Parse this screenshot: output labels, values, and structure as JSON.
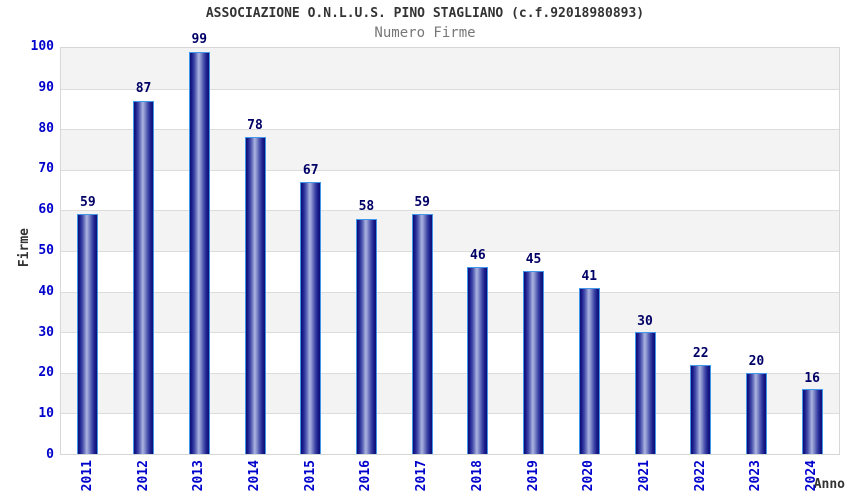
{
  "chart_data": {
    "type": "bar",
    "title": "ASSOCIAZIONE O.N.L.U.S. PINO STAGLIANO (c.f.92018980893)",
    "subtitle": "Numero Firme",
    "categories": [
      "2011",
      "2012",
      "2013",
      "2014",
      "2015",
      "2016",
      "2017",
      "2018",
      "2019",
      "2020",
      "2021",
      "2022",
      "2023",
      "2024"
    ],
    "values": [
      59,
      87,
      99,
      78,
      67,
      58,
      59,
      46,
      45,
      41,
      30,
      22,
      20,
      16
    ],
    "xlabel": "Anno",
    "ylabel": "Firme",
    "ylim": [
      0,
      100
    ],
    "ytick_step": 10,
    "grid": true,
    "legend": "none",
    "colors": {
      "bar_dark": "#0d0d73",
      "bar_highlight": "#aab3e0",
      "bar_border": "#4297e8",
      "tick_label": "#0000cc",
      "value_label": "#000066",
      "title": "#333333",
      "subtitle": "#777777",
      "band_gray": "#f3f3f3",
      "band_white": "#ffffff",
      "gridline": "#dcdcdc",
      "plot_border": "#d7d7d7"
    }
  }
}
